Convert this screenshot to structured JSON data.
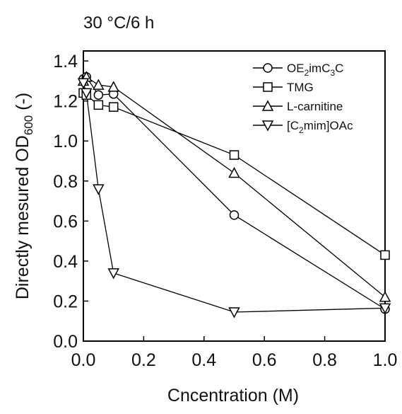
{
  "chart_data": {
    "type": "line",
    "title": "30 °C/6 h",
    "xlabel": "Cncentration (M)",
    "ylabel_main": "Directly mesured OD",
    "ylabel_sub": "600",
    "ylabel_unit": " (-)",
    "xlim": [
      0.0,
      1.0
    ],
    "ylim": [
      0.0,
      1.45
    ],
    "xticks": [
      "0.0",
      "0.2",
      "0.4",
      "0.6",
      "0.8",
      "1.0"
    ],
    "yticks": [
      "0.0",
      "0.2",
      "0.4",
      "0.6",
      "0.8",
      "1.0",
      "1.2",
      "1.4"
    ],
    "legend_position": "top-right",
    "series": [
      {
        "name_main": "OE",
        "name_sub1": "2",
        "name_mid": "imC",
        "name_sub2": "3",
        "name_tail": "C",
        "marker": "circle",
        "x": [
          0.0,
          0.01,
          0.05,
          0.1,
          0.5,
          1.0
        ],
        "y": [
          1.31,
          1.32,
          1.23,
          1.235,
          0.63,
          0.16
        ]
      },
      {
        "name_main": "TMG",
        "marker": "square",
        "x": [
          0.0,
          0.01,
          0.05,
          0.1,
          0.5,
          1.0
        ],
        "y": [
          1.24,
          1.23,
          1.18,
          1.17,
          0.93,
          0.43
        ]
      },
      {
        "name_main": "L-carnitine",
        "marker": "triangle-up",
        "x": [
          0.0,
          0.01,
          0.05,
          0.1,
          0.5,
          1.0
        ],
        "y": [
          1.3,
          1.32,
          1.28,
          1.27,
          0.84,
          0.22
        ]
      },
      {
        "name_main": "[C",
        "name_sub1": "2",
        "name_mid": "mim]OAc",
        "marker": "triangle-down",
        "x": [
          0.0,
          0.01,
          0.05,
          0.1,
          0.5,
          1.0
        ],
        "y": [
          1.29,
          1.24,
          0.76,
          0.34,
          0.145,
          0.165
        ]
      }
    ]
  }
}
